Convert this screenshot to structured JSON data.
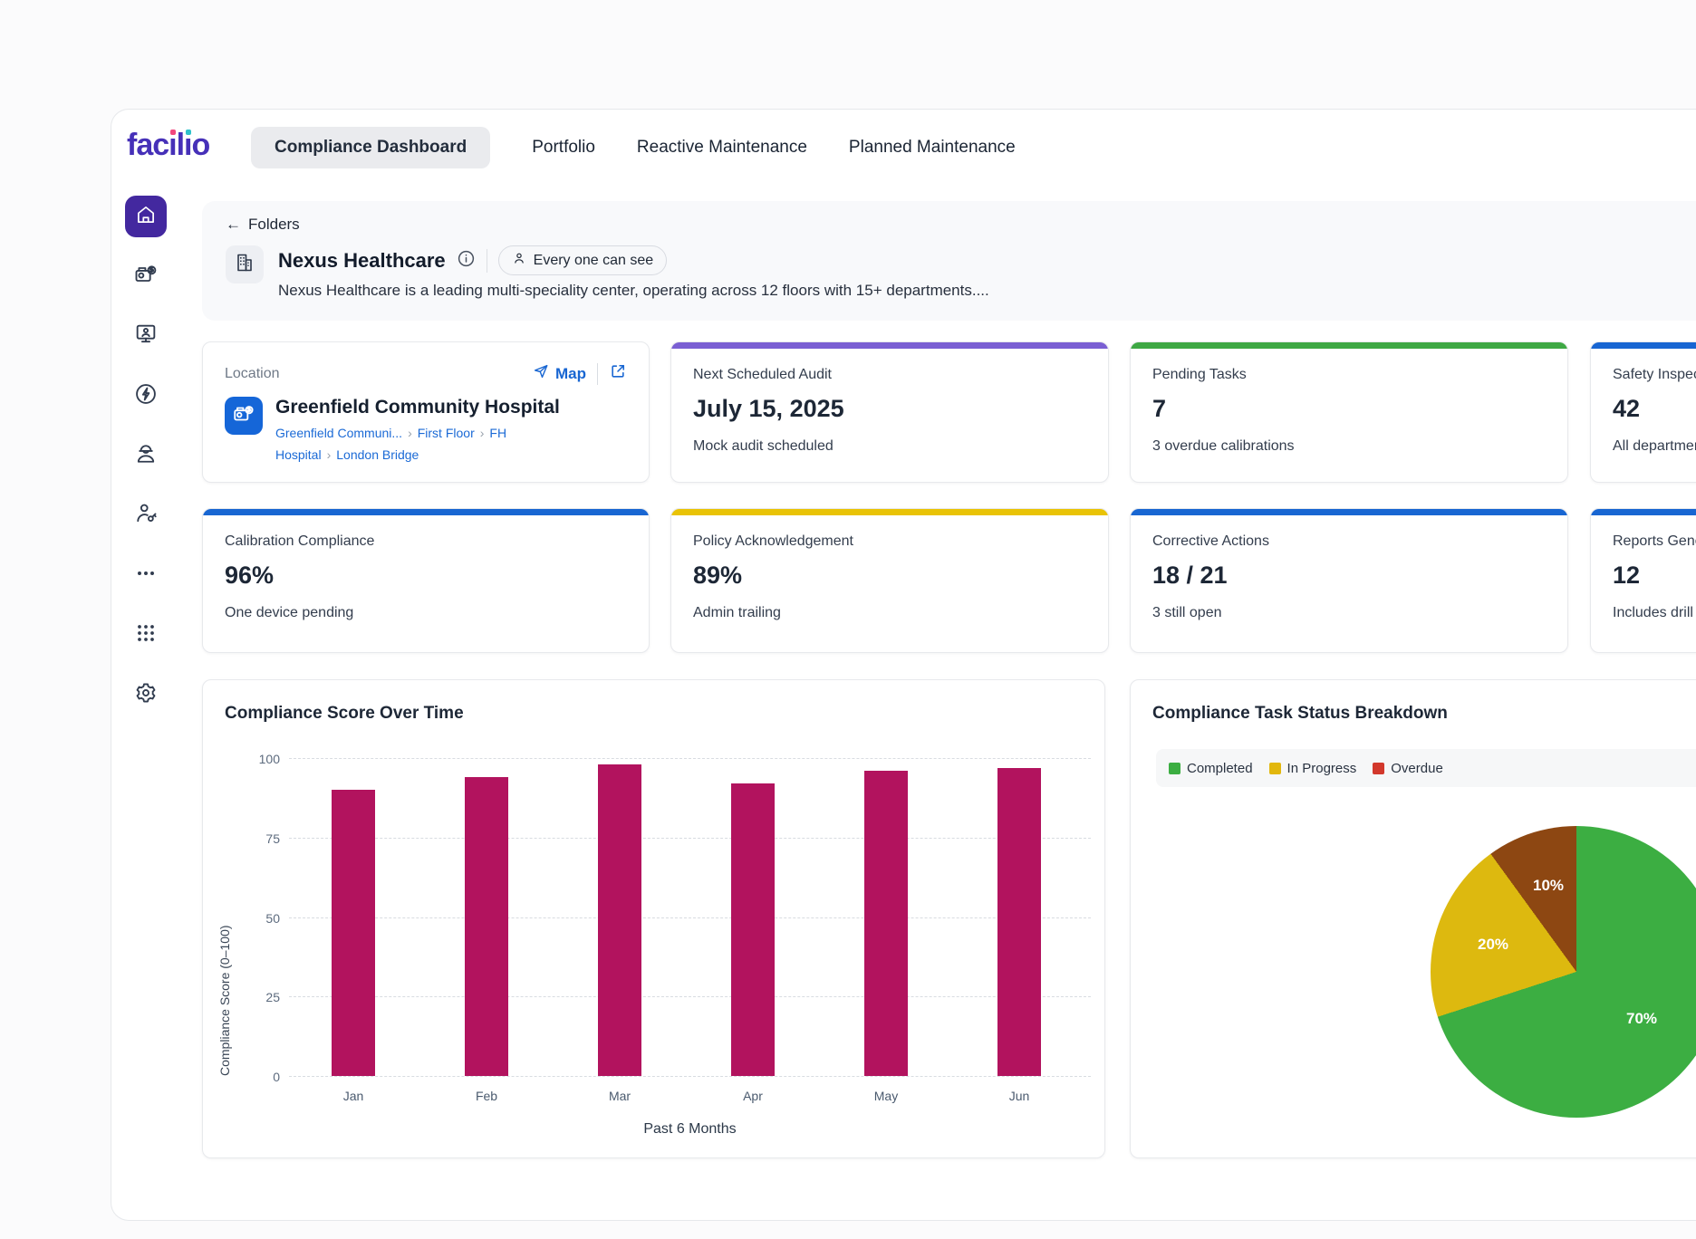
{
  "brand": {
    "wordmark_prefix": "fac",
    "wordmark_l": "l",
    "wordmark_o": "o",
    "color": "#4630B8",
    "dot1_color": "#F2477E",
    "dot2_color": "#2FC2CB"
  },
  "nav": {
    "tabs": [
      {
        "label": "Compliance Dashboard",
        "active": true
      },
      {
        "label": "Portfolio",
        "active": false
      },
      {
        "label": "Reactive Maintenance",
        "active": false
      },
      {
        "label": "Planned Maintenance",
        "active": false
      }
    ]
  },
  "sidebar": {
    "active_item": "home",
    "icons": [
      "home-icon",
      "asset-finance-icon",
      "kiosk-icon",
      "energy-icon",
      "workforce-icon",
      "technician-icon",
      "more-icon",
      "apps-grid-icon",
      "settings-icon"
    ]
  },
  "header": {
    "back_arrow": "←",
    "back_label": "Folders",
    "title": "Nexus Healthcare",
    "visibility_badge": "Every one can see",
    "description": "Nexus Healthcare is a leading multi-speciality center, operating across 12 floors with 15+ departments...."
  },
  "location_card": {
    "label": "Location",
    "map_label": "Map",
    "name": "Greenfield Community Hospital",
    "separator": "›",
    "breadcrumbs": [
      "Greenfield Communi...",
      "First Floor",
      "FH Hospital",
      "London Bridge"
    ]
  },
  "stat_cards": [
    {
      "label": "Next Scheduled Audit",
      "value": "July 15, 2025",
      "sub": "Mock audit scheduled",
      "accent": "#7A5FD3"
    },
    {
      "label": "Pending Tasks",
      "value": "7",
      "sub": "3 overdue calibrations",
      "accent": "#3EA844"
    },
    {
      "label": "Safety Inspections",
      "value": "42",
      "sub": "All departments",
      "accent": "#1866D2"
    },
    {
      "label": "Calibration Compliance",
      "value": "96%",
      "sub": "One device pending",
      "accent": "#1866D2"
    },
    {
      "label": "Policy Acknowledgement",
      "value": "89%",
      "sub": "Admin trailing",
      "accent": "#E9C306"
    },
    {
      "label": "Corrective Actions",
      "value": "18 / 21",
      "sub": "3 still open",
      "accent": "#1866D2"
    },
    {
      "label": "Reports Generated",
      "value": "12",
      "sub": "Includes drill reports",
      "accent": "#1866D2"
    }
  ],
  "chart_data": [
    {
      "type": "bar",
      "title": "Compliance Score Over Time",
      "categories": [
        "Jan",
        "Feb",
        "Mar",
        "Apr",
        "May",
        "Jun"
      ],
      "values": [
        90,
        94,
        98,
        92,
        96,
        97
      ],
      "xlabel": "Past 6 Months",
      "ylabel": "Compliance Score (0–100)",
      "ylim": [
        0,
        100
      ],
      "yticks": [
        100,
        75,
        50,
        25,
        0
      ],
      "bar_color": "#B2135E",
      "grid": "dashed horizontal"
    },
    {
      "type": "pie",
      "title": "Compliance Task Status Breakdown",
      "legend_position": "top",
      "slices": [
        {
          "label": "Completed",
          "value": 70,
          "display": "70%",
          "color": "#3CAE42",
          "legend_color": "#3CAE42"
        },
        {
          "label": "In Progress",
          "value": 20,
          "display": "20%",
          "color": "#DDB90F",
          "legend_color": "#E2B70D"
        },
        {
          "label": "Overdue",
          "value": 10,
          "display": "10%",
          "color": "#8D4712",
          "legend_color": "#D2382C"
        }
      ]
    }
  ]
}
